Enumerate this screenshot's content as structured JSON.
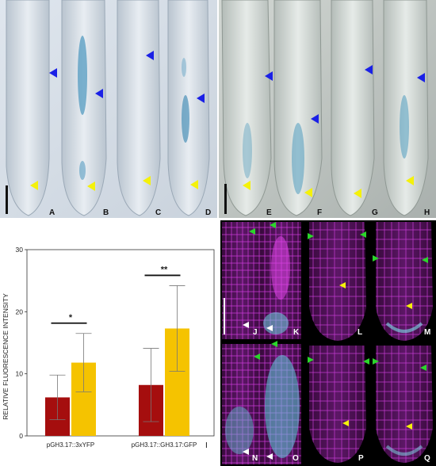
{
  "panels_top": {
    "labels": [
      "A",
      "B",
      "C",
      "D",
      "E",
      "F",
      "G",
      "H"
    ]
  },
  "panels_fluor": {
    "labels": [
      "J",
      "K",
      "L",
      "M",
      "N",
      "O",
      "P",
      "Q"
    ]
  },
  "chart_label": "I",
  "chart_data": {
    "type": "bar",
    "ylabel": "RELATIVE FLUORESCENCE INTENSITY",
    "ylim": [
      0,
      30
    ],
    "yticks": [
      0,
      10,
      20,
      30
    ],
    "categories": [
      "pGH3.17::3xYFP",
      "pGH3.17::GH3.17:GFP"
    ],
    "series": [
      {
        "color": "#a50e0e",
        "values": [
          6.2,
          8.2
        ],
        "errors": [
          3.6,
          5.9
        ]
      },
      {
        "color": "#f5c300",
        "values": [
          11.8,
          17.3
        ],
        "errors": [
          4.7,
          6.9
        ]
      }
    ],
    "significance": [
      "*",
      "**"
    ]
  }
}
